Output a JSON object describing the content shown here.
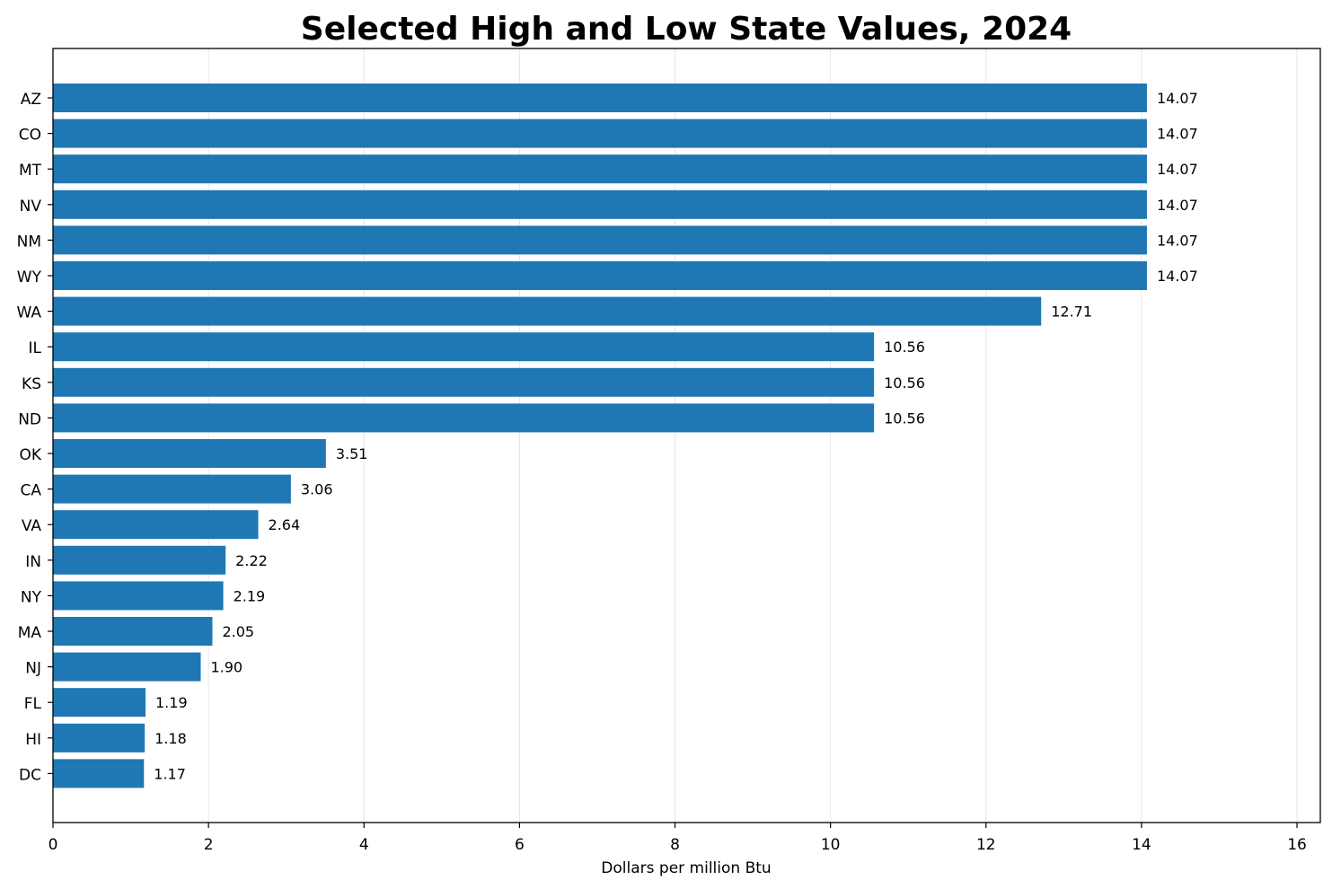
{
  "chart_data": {
    "type": "bar",
    "orientation": "horizontal",
    "title": "Selected High and Low State Values, 2024",
    "xlabel": "Dollars per million Btu",
    "ylabel": "",
    "xlim": [
      0,
      16.3
    ],
    "x_ticks": [
      0,
      2,
      4,
      6,
      8,
      10,
      12,
      14,
      16
    ],
    "grid": "vertical",
    "bar_color": "#1f77b4",
    "categories": [
      "AZ",
      "CO",
      "MT",
      "NV",
      "NM",
      "WY",
      "WA",
      "IL",
      "KS",
      "ND",
      "OK",
      "CA",
      "VA",
      "IN",
      "NY",
      "MA",
      "NJ",
      "FL",
      "HI",
      "DC"
    ],
    "values": [
      14.07,
      14.07,
      14.07,
      14.07,
      14.07,
      14.07,
      12.71,
      10.56,
      10.56,
      10.56,
      3.51,
      3.06,
      2.64,
      2.22,
      2.19,
      2.05,
      1.9,
      1.19,
      1.18,
      1.17
    ],
    "value_labels": [
      "14.07",
      "14.07",
      "14.07",
      "14.07",
      "14.07",
      "14.07",
      "12.71",
      "10.56",
      "10.56",
      "10.56",
      "3.51",
      "3.06",
      "2.64",
      "2.22",
      "2.19",
      "2.05",
      "1.90",
      "1.19",
      "1.18",
      "1.17"
    ]
  }
}
